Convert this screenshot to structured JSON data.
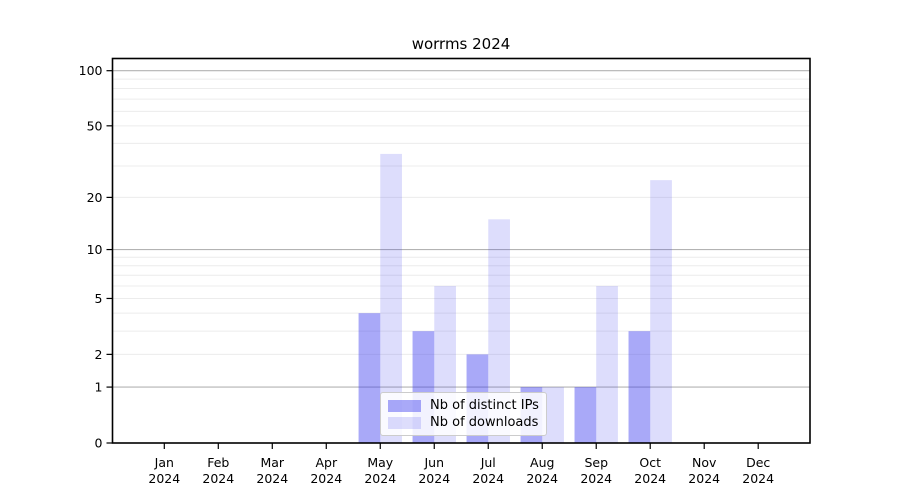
{
  "chart_data": {
    "type": "bar",
    "title": "worrms 2024",
    "x_categories": [
      "Jan",
      "Feb",
      "Mar",
      "Apr",
      "May",
      "Jun",
      "Jul",
      "Aug",
      "Sep",
      "Oct",
      "Nov",
      "Dec"
    ],
    "x_year_label": "2024",
    "series": [
      {
        "name": "Nb of distinct IPs",
        "color": "#4040f0",
        "fill_opacity": 0.45,
        "values": [
          0,
          0,
          0,
          0,
          4,
          3,
          2,
          1,
          1,
          3,
          0,
          0
        ]
      },
      {
        "name": "Nb of downloads",
        "color": "#4040f0",
        "fill_opacity": 0.18,
        "values": [
          0,
          0,
          0,
          0,
          35,
          6,
          15,
          1,
          6,
          25,
          0,
          0
        ]
      }
    ],
    "y_axis": {
      "scale": "log1p",
      "tick_values": [
        0,
        1,
        2,
        5,
        10,
        20,
        50,
        100
      ],
      "tick_labels": [
        "0",
        "1",
        "2",
        "5",
        "10",
        "20",
        "50",
        "100"
      ],
      "major_gridlines": [
        1,
        10,
        100
      ],
      "minor_gridlines": [
        2,
        3,
        4,
        5,
        6,
        7,
        8,
        9,
        20,
        30,
        40,
        50,
        60,
        70,
        80,
        90
      ],
      "range": [
        0,
        117
      ]
    },
    "legend": {
      "position": "bottom-center"
    },
    "grid": true,
    "colors": {
      "major_grid": "#b3b3b3",
      "minor_grid": "#ececec",
      "spine": "#000000",
      "tick_text": "#000000",
      "background": "#ffffff"
    }
  }
}
